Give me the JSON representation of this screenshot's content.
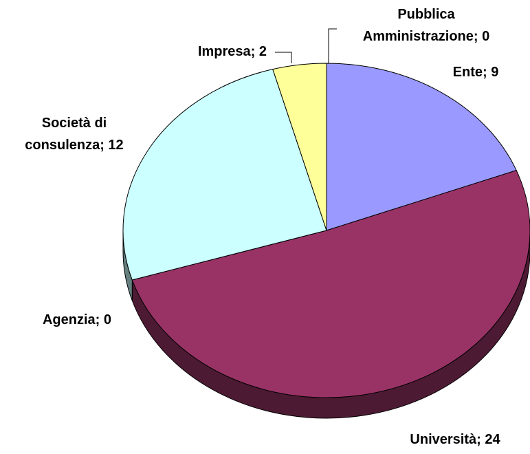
{
  "chart_data": {
    "type": "pie3d",
    "labels": [
      [
        "Ente; 9"
      ],
      [
        "Università; 24"
      ],
      [
        "Agenzia; 0"
      ],
      [
        "Società di",
        "consulenza; 12"
      ],
      [
        "Impresa; 2"
      ],
      [
        "Pubblica",
        "Amministrazione; 0"
      ]
    ],
    "values": [
      9,
      24,
      0,
      12,
      2,
      0
    ],
    "colors": [
      "#9999ff",
      "#993366",
      "#993366",
      "#ccffff",
      "#ffff99",
      "#9999ff"
    ]
  }
}
